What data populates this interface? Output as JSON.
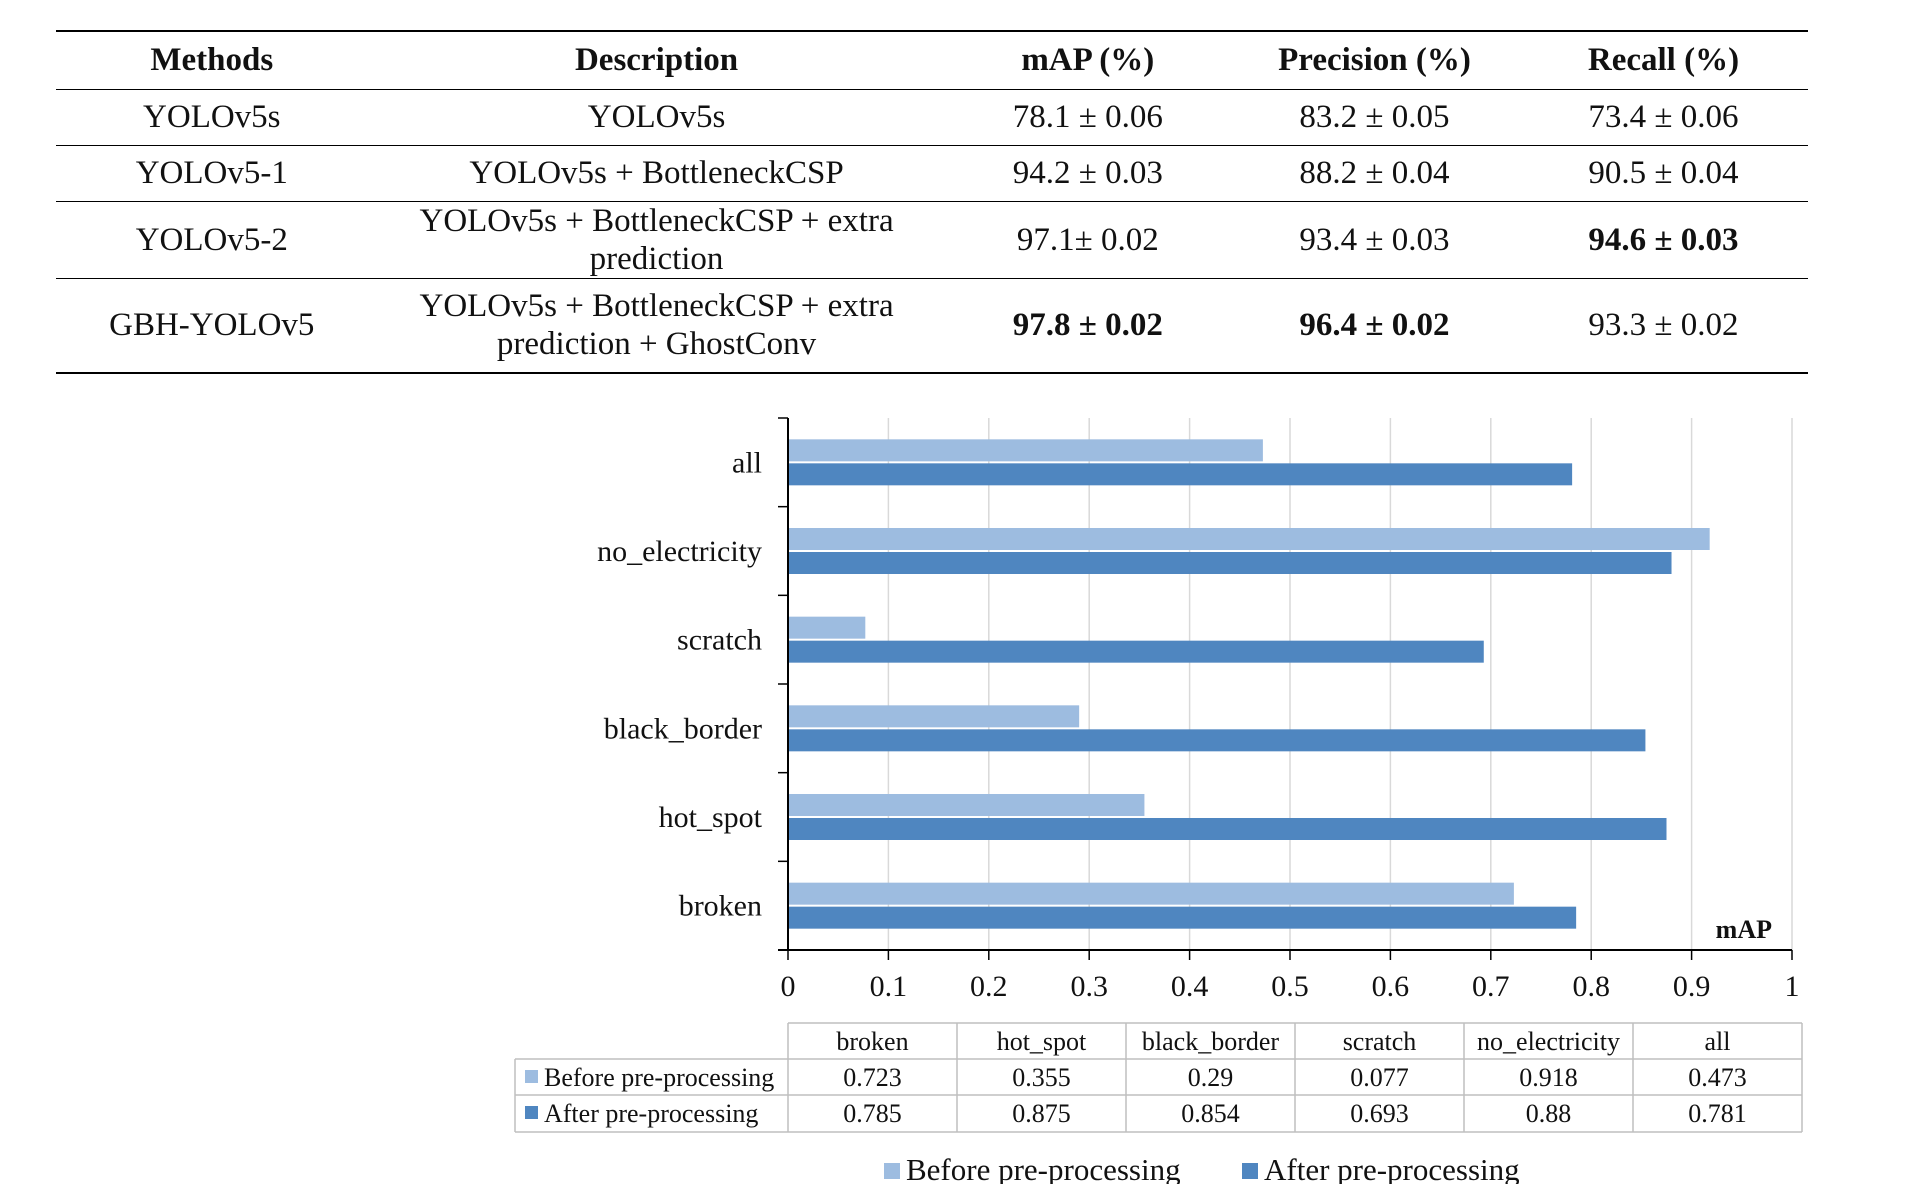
{
  "table": {
    "headers": [
      "Methods",
      "Description",
      "mAP (%)",
      "Precision (%)",
      "Recall (%)"
    ],
    "rows": [
      {
        "method": "YOLOv5s",
        "description": "YOLOv5s",
        "map": "78.1 ± 0.06",
        "precision": "83.2 ± 0.05",
        "recall": "73.4 ± 0.06"
      },
      {
        "method": "YOLOv5-1",
        "description": "YOLOv5s + BottleneckCSP",
        "map": "94.2 ± 0.03",
        "precision": "88.2 ± 0.04",
        "recall": "90.5 ± 0.04"
      },
      {
        "method": "YOLOv5-2",
        "description": "YOLOv5s + BottleneckCSP + extra prediction",
        "map": "97.1± 0.02",
        "precision": "93.4 ± 0.03",
        "recall": "94.6 ± 0.03"
      },
      {
        "method": "GBH-YOLOv5",
        "description_line1": "YOLOv5s + BottleneckCSP + extra",
        "description_line2": "prediction + GhostConv",
        "map": "97.8 ± 0.02",
        "precision": "96.4 ± 0.02",
        "recall": "93.3 ± 0.02"
      }
    ]
  },
  "chart_data": {
    "type": "bar",
    "orientation": "horizontal",
    "categories": [
      "broken",
      "hot_spot",
      "black_border",
      "scratch",
      "no_electricity",
      "all"
    ],
    "series": [
      {
        "name": "Before pre-processing",
        "color": "#9dbce0",
        "values": [
          0.723,
          0.355,
          0.29,
          0.077,
          0.918,
          0.473
        ]
      },
      {
        "name": "After pre-processing",
        "color": "#4f86c0",
        "values": [
          0.785,
          0.875,
          0.854,
          0.693,
          0.88,
          0.781
        ]
      }
    ],
    "value_axis_label": "mAP",
    "xlim": [
      0,
      1
    ],
    "x_ticks": [
      "0",
      "0.1",
      "0.2",
      "0.3",
      "0.4",
      "0.5",
      "0.6",
      "0.7",
      "0.8",
      "0.9",
      "1"
    ],
    "grid": true,
    "data_table_values": {
      "before": [
        "0.723",
        "0.355",
        "0.29",
        "0.077",
        "0.918",
        "0.473"
      ],
      "after": [
        "0.785",
        "0.875",
        "0.854",
        "0.693",
        "0.88",
        "0.781"
      ]
    },
    "legend_position": "bottom"
  }
}
